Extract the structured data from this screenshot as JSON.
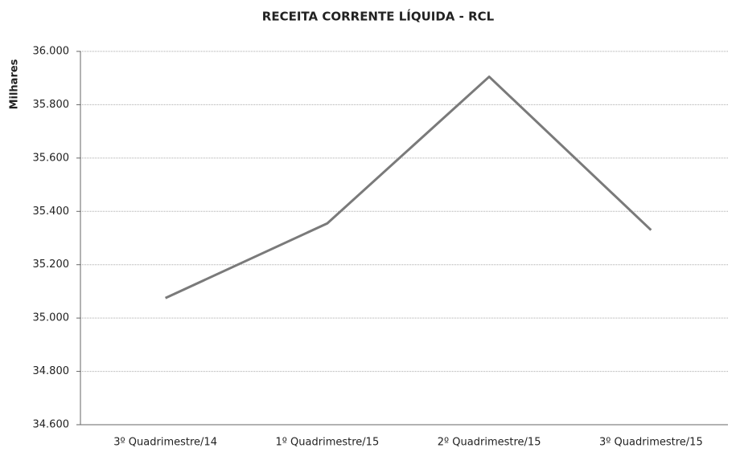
{
  "chart_data": {
    "type": "line",
    "title": "RECEITA CORRENTE LÍQUIDA - RCL",
    "y_label": "Milhares",
    "categories": [
      "3º Quadrimestre/14",
      "1º Quadrimestre/15",
      "2º Quadrimestre/15",
      "3º Quadrimestre/15"
    ],
    "series": [
      {
        "name": "RCL",
        "color": "#7a7a7a",
        "values": [
          35075,
          35355,
          35905,
          35330
        ]
      }
    ],
    "ylim": [
      34600,
      36000
    ],
    "yticks": [
      {
        "value": 34600,
        "label": "34.600"
      },
      {
        "value": 34800,
        "label": "34.800"
      },
      {
        "value": 35000,
        "label": "35.000"
      },
      {
        "value": 35200,
        "label": "35.200"
      },
      {
        "value": 35400,
        "label": "35.400"
      },
      {
        "value": 35600,
        "label": "35.600"
      },
      {
        "value": 35800,
        "label": "35.800"
      },
      {
        "value": 36000,
        "label": "36.000"
      }
    ],
    "grid": true
  }
}
